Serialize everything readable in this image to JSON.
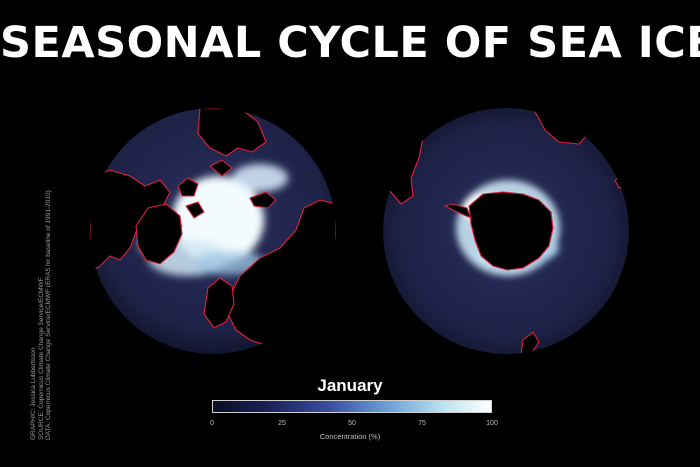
{
  "title": "SEASONAL CYCLE OF SEA ICE",
  "credits": [
    "GRAPHIC: Jessica Lubbertsson",
    "SOURCE: Copernicus Climate Change Service/ECMWF",
    "DATA: Copernicus Climate Change Service/ECMWF (ERA5 for baseline of 1991-2010)"
  ],
  "map": {
    "month": "January",
    "globes": [
      "north-polar",
      "south-polar"
    ]
  },
  "colorbar": {
    "label": "Concentration (%)",
    "ticks": [
      "0",
      "25",
      "50",
      "75",
      "100"
    ],
    "colors": [
      "#0b0d24",
      "#1a2257",
      "#3a4fa2",
      "#6fa4d8",
      "#bfe5f0",
      "#ffffff"
    ]
  },
  "colors": {
    "background": "#000000",
    "ocean": "#1e2247",
    "land": "#000000",
    "coastline": "#e0213e",
    "ice": "#f3fbfd"
  }
}
